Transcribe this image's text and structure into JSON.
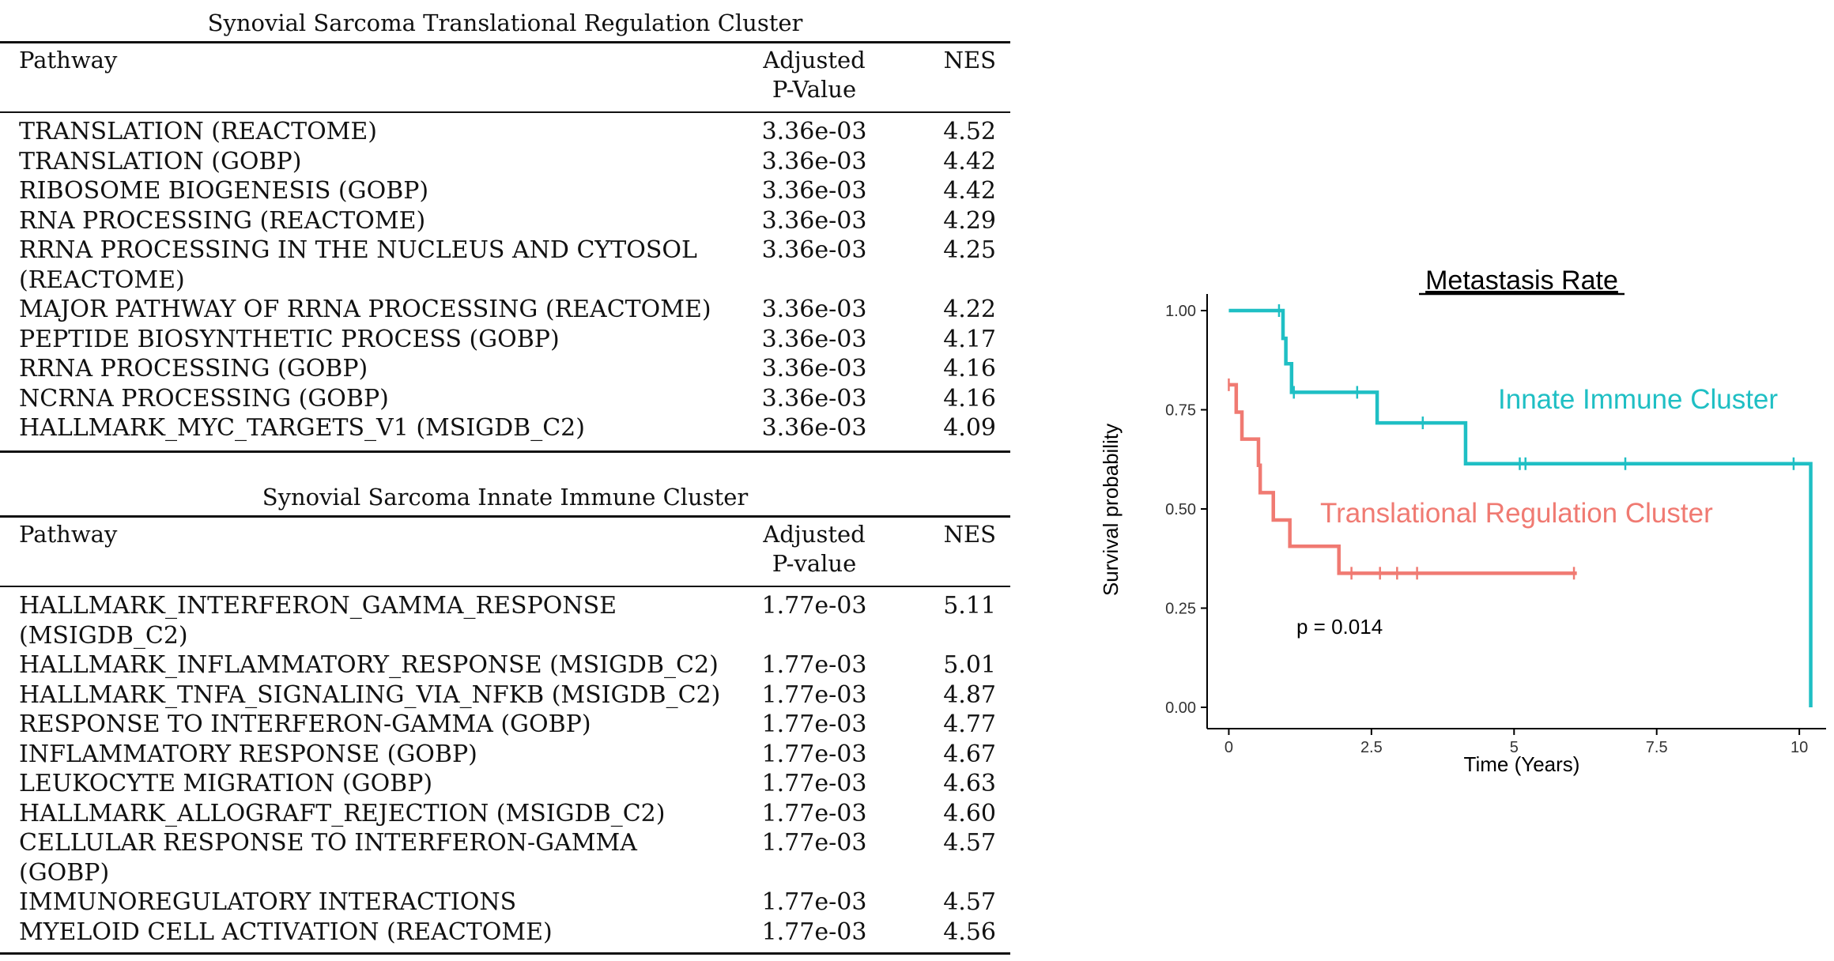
{
  "table_translational": {
    "caption": "Synovial Sarcoma Translational Regulation Cluster",
    "headers": {
      "pathway": "Pathway",
      "pval_line1": "Adjusted",
      "pval_line2": "P-Value",
      "nes": "NES"
    },
    "rows": [
      {
        "pathway": "TRANSLATION (REACTOME)",
        "pathway2": "",
        "pval": "3.36e-03",
        "nes": "4.52"
      },
      {
        "pathway": "TRANSLATION (GOBP)",
        "pathway2": "",
        "pval": "3.36e-03",
        "nes": "4.42"
      },
      {
        "pathway": "RIBOSOME BIOGENESIS (GOBP)",
        "pathway2": "",
        "pval": "3.36e-03",
        "nes": "4.42"
      },
      {
        "pathway": "RNA PROCESSING (REACTOME)",
        "pathway2": "",
        "pval": "3.36e-03",
        "nes": "4.29"
      },
      {
        "pathway": "RRNA PROCESSING IN THE NUCLEUS AND CYTOSOL",
        "pathway2": "(REACTOME)",
        "pval": "3.36e-03",
        "nes": "4.25"
      },
      {
        "pathway": "MAJOR PATHWAY OF RRNA PROCESSING (REACTOME)",
        "pathway2": "",
        "pval": "3.36e-03",
        "nes": "4.22"
      },
      {
        "pathway": "PEPTIDE BIOSYNTHETIC PROCESS (GOBP)",
        "pathway2": "",
        "pval": "3.36e-03",
        "nes": "4.17"
      },
      {
        "pathway": "RRNA PROCESSING (GOBP)",
        "pathway2": "",
        "pval": "3.36e-03",
        "nes": "4.16"
      },
      {
        "pathway": "NCRNA PROCESSING (GOBP)",
        "pathway2": "",
        "pval": "3.36e-03",
        "nes": "4.16"
      },
      {
        "pathway": "HALLMARK_MYC_TARGETS_V1 (MSIGDB_C2)",
        "pathway2": "",
        "pval": "3.36e-03",
        "nes": "4.09"
      }
    ]
  },
  "table_immune": {
    "caption": "Synovial Sarcoma Innate Immune Cluster",
    "headers": {
      "pathway": "Pathway",
      "pval_line1": "Adjusted",
      "pval_line2": "P-value",
      "nes": "NES"
    },
    "rows": [
      {
        "pathway": "HALLMARK_INTERFERON_GAMMA_RESPONSE",
        "pathway2": "(MSIGDB_C2)",
        "pval": "1.77e-03",
        "nes": "5.11"
      },
      {
        "pathway": "HALLMARK_INFLAMMATORY_RESPONSE (MSIGDB_C2)",
        "pathway2": "",
        "pval": "1.77e-03",
        "nes": "5.01"
      },
      {
        "pathway": "HALLMARK_TNFA_SIGNALING_VIA_NFKB (MSIGDB_C2)",
        "pathway2": "",
        "pval": "1.77e-03",
        "nes": "4.87"
      },
      {
        "pathway": "RESPONSE TO INTERFERON-GAMMA (GOBP)",
        "pathway2": "",
        "pval": "1.77e-03",
        "nes": "4.77"
      },
      {
        "pathway": "INFLAMMATORY RESPONSE (GOBP)",
        "pathway2": "",
        "pval": "1.77e-03",
        "nes": "4.67"
      },
      {
        "pathway": "LEUKOCYTE MIGRATION (GOBP)",
        "pathway2": "",
        "pval": "1.77e-03",
        "nes": "4.63"
      },
      {
        "pathway": "HALLMARK_ALLOGRAFT_REJECTION (MSIGDB_C2)",
        "pathway2": "",
        "pval": "1.77e-03",
        "nes": "4.60"
      },
      {
        "pathway": "CELLULAR RESPONSE TO INTERFERON-GAMMA",
        "pathway2": "(GOBP)",
        "pval": "1.77e-03",
        "nes": "4.57"
      },
      {
        "pathway": "IMMUNOREGULATORY INTERACTIONS",
        "pathway2": "",
        "pval": "1.77e-03",
        "nes": "4.57"
      },
      {
        "pathway": "MYELOID CELL ACTIVATION (REACTOME)",
        "pathway2": "",
        "pval": "1.77e-03",
        "nes": "4.56"
      }
    ]
  },
  "chart_data": {
    "type": "line",
    "title": "Metastasis Rate",
    "xlabel": "Time  (Years)",
    "ylabel": "Survival probability",
    "xlim": [
      -0.2,
      10.4
    ],
    "ylim": [
      0,
      1
    ],
    "xticks": [
      0,
      2.5,
      5,
      7.5,
      10
    ],
    "xtick_labels": [
      "0",
      "2.5",
      "5",
      "7.5",
      "10"
    ],
    "yticks": [
      0,
      0.25,
      0.5,
      0.75,
      1
    ],
    "ytick_labels": [
      "0.00",
      "0.25",
      "0.50",
      "0.75",
      "1.00"
    ],
    "grid": false,
    "legend": "none",
    "annotation": "p = 0.014",
    "series": [
      {
        "name": "Innate Immune Cluster",
        "color": "#1fbfc4",
        "steps": [
          [
            0,
            1.0
          ],
          [
            0.95,
            0.93
          ],
          [
            1.0,
            0.866
          ],
          [
            1.1,
            0.794
          ],
          [
            2.6,
            0.717
          ],
          [
            4.15,
            0.614
          ],
          [
            10.2,
            0.0
          ]
        ],
        "end_x": 10.2,
        "censor": [
          0.88,
          1.14,
          2.25,
          3.4,
          5.1,
          5.2,
          6.95,
          9.9
        ]
      },
      {
        "name": "Translational Regulation Cluster",
        "color": "#f07a72",
        "steps": [
          [
            0,
            0.813
          ],
          [
            0.13,
            0.744
          ],
          [
            0.23,
            0.676
          ],
          [
            0.52,
            0.61
          ],
          [
            0.55,
            0.541
          ],
          [
            0.78,
            0.472
          ],
          [
            1.07,
            0.406
          ],
          [
            1.93,
            0.338
          ]
        ],
        "end_x": 6.1,
        "censor": [
          0.0,
          2.15,
          2.65,
          2.95,
          3.3,
          6.05
        ]
      }
    ]
  }
}
